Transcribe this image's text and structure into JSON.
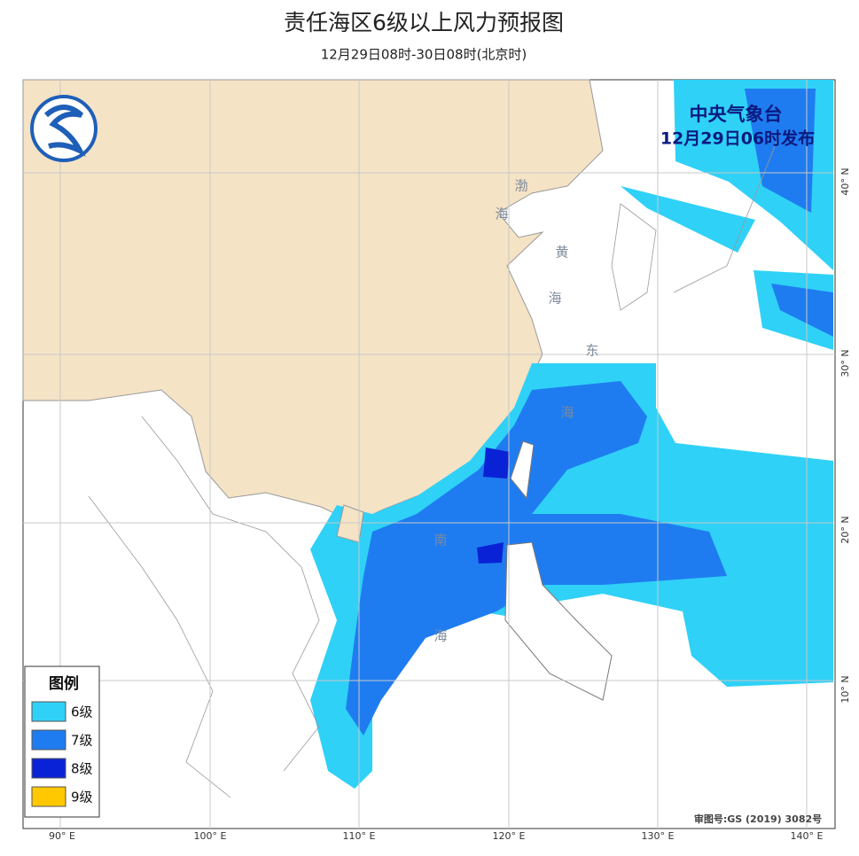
{
  "header": {
    "title": "责任海区6级以上风力预报图",
    "subtitle": "12月29日08时-30日08时(北京时)"
  },
  "issuer": {
    "agency": "中央气象台",
    "issued": "12月29日06时发布"
  },
  "legend": {
    "title": "图例",
    "items": [
      {
        "label": "6级",
        "color": "#2fd1f7"
      },
      {
        "label": "7级",
        "color": "#1f7cf0"
      },
      {
        "label": "8级",
        "color": "#0a22d6"
      },
      {
        "label": "9级",
        "color": "#ffc800"
      }
    ]
  },
  "sea_labels": [
    "渤",
    "海",
    "黄",
    "海",
    "东",
    "海",
    "南",
    "海"
  ],
  "grid": {
    "lat_labels": [
      "40° N",
      "30° N",
      "20° N",
      "10° N"
    ],
    "lon_labels": [
      "90° E",
      "100° E",
      "110° E",
      "120° E",
      "130° E",
      "140° E"
    ]
  },
  "footer": {
    "approval": "审图号:GS (2019) 3082号"
  }
}
